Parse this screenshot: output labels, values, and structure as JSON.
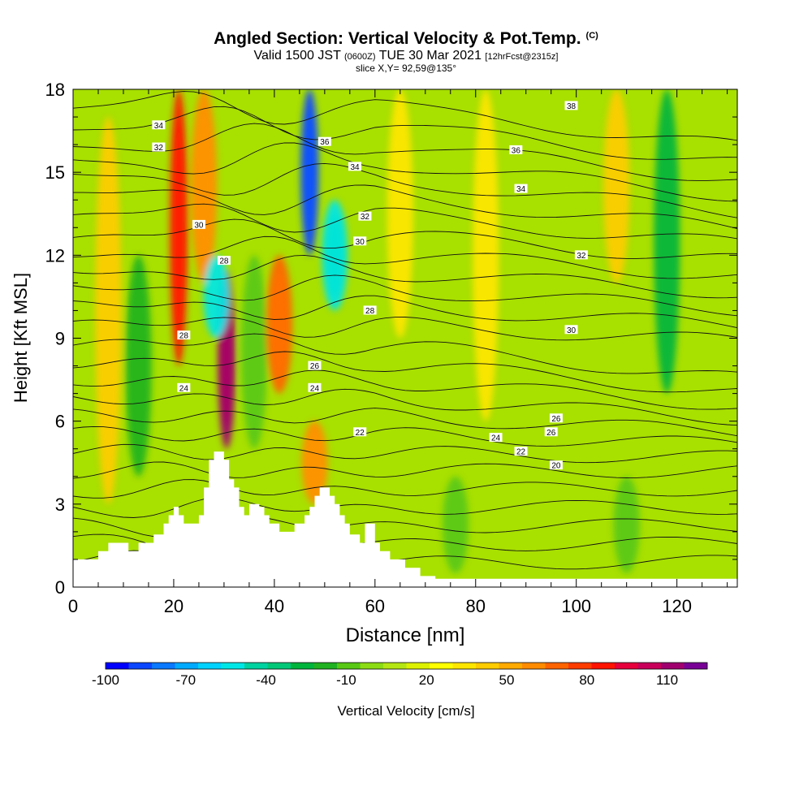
{
  "header": {
    "title": "Angled Section: Vertical Velocity & Pot.Temp.",
    "title_units": "(C)",
    "valid_prefix": "Valid 1500 JST",
    "valid_utc": "(0600Z)",
    "valid_date": "TUE 30 Mar 2021",
    "forecast": "[12hrFcst@2315z]",
    "slice": "slice X,Y= 92,59@135°"
  },
  "chart_data": {
    "type": "heatmap",
    "title": "Angled Section: Vertical Velocity & Pot.Temp.",
    "xlabel": "Distance [nm]",
    "ylabel": "Height [Kft MSL]",
    "xlim": [
      0,
      132
    ],
    "ylim": [
      0,
      18
    ],
    "x_ticks": [
      "0",
      "20",
      "40",
      "60",
      "80",
      "100",
      "120"
    ],
    "y_ticks": [
      "0",
      "3",
      "6",
      "9",
      "12",
      "15",
      "18"
    ],
    "colorbar": {
      "label": "Vertical Velocity [cm/s]",
      "tick_labels": [
        "-100",
        "-70",
        "-40",
        "-10",
        "20",
        "50",
        "80",
        "110"
      ],
      "min": -100,
      "max": 125,
      "colors": [
        "#0000ff",
        "#0a46ff",
        "#0a78ff",
        "#00aaff",
        "#00d2ff",
        "#00e6e6",
        "#00d2a0",
        "#00c878",
        "#00b43c",
        "#20b220",
        "#58c814",
        "#8cdc14",
        "#b4e614",
        "#dcf000",
        "#ffff00",
        "#ffe600",
        "#ffcc00",
        "#ffaa00",
        "#ff8c00",
        "#ff6400",
        "#ff3c00",
        "#ff1400",
        "#e6003c",
        "#c8005a",
        "#a0006e",
        "#780096"
      ]
    },
    "vertical_velocity_features": [
      {
        "x": 21,
        "y_range": [
          8,
          18
        ],
        "value": 90,
        "note": "updraft"
      },
      {
        "x": 26,
        "y_range": [
          11,
          18
        ],
        "value": 60
      },
      {
        "x": 30.5,
        "y_range": [
          5,
          11.5
        ],
        "value": 115,
        "note": "strong updraft"
      },
      {
        "x": 28.5,
        "y_range": [
          9,
          12
        ],
        "value": -50
      },
      {
        "x": 36,
        "y_range": [
          5,
          12
        ],
        "value": -10
      },
      {
        "x": 41,
        "y_range": [
          7,
          12
        ],
        "value": 65
      },
      {
        "x": 47,
        "y_range": [
          12,
          18
        ],
        "value": -90,
        "note": "downdraft"
      },
      {
        "x": 52,
        "y_range": [
          10,
          14
        ],
        "value": -55
      },
      {
        "x": 48,
        "y_range": [
          3,
          6
        ],
        "value": 60
      },
      {
        "x": 7,
        "y_range": [
          3,
          17
        ],
        "value": 45
      },
      {
        "x": 13,
        "y_range": [
          4,
          12
        ],
        "value": -15
      },
      {
        "x": 65,
        "y_range": [
          9,
          18
        ],
        "value": 30
      },
      {
        "x": 82,
        "y_range": [
          6,
          18
        ],
        "value": 35
      },
      {
        "x": 108,
        "y_range": [
          11,
          18
        ],
        "value": 45
      },
      {
        "x": 118,
        "y_range": [
          7,
          18
        ],
        "value": -30
      },
      {
        "x": 76,
        "y_range": [
          0.5,
          4
        ],
        "value": -10
      },
      {
        "x": 110,
        "y_range": [
          0.5,
          4
        ],
        "value": -5
      }
    ],
    "isentropes": [
      {
        "label": "20",
        "label_at": [
          96,
          4.4
        ]
      },
      {
        "label": "22",
        "label_at": [
          57,
          5.6
        ]
      },
      {
        "label": "22",
        "label_at": [
          89,
          4.9
        ]
      },
      {
        "label": "24",
        "label_at": [
          22,
          7.2
        ]
      },
      {
        "label": "24",
        "label_at": [
          48,
          7.2
        ]
      },
      {
        "label": "24",
        "label_at": [
          84,
          5.4
        ]
      },
      {
        "label": "26",
        "label_at": [
          48,
          8.0
        ]
      },
      {
        "label": "26",
        "label_at": [
          95,
          5.6
        ]
      },
      {
        "label": "26",
        "label_at": [
          96,
          6.1
        ]
      },
      {
        "label": "28",
        "label_at": [
          22,
          9.1
        ]
      },
      {
        "label": "28",
        "label_at": [
          59,
          10.0
        ]
      },
      {
        "label": "28",
        "label_at": [
          30,
          11.8
        ]
      },
      {
        "label": "30",
        "label_at": [
          25,
          13.1
        ]
      },
      {
        "label": "30",
        "label_at": [
          57,
          12.5
        ]
      },
      {
        "label": "30",
        "label_at": [
          99,
          9.3
        ]
      },
      {
        "label": "32",
        "label_at": [
          17,
          15.9
        ]
      },
      {
        "label": "32",
        "label_at": [
          58,
          13.4
        ]
      },
      {
        "label": "32",
        "label_at": [
          101,
          12.0
        ]
      },
      {
        "label": "34",
        "label_at": [
          17,
          16.7
        ]
      },
      {
        "label": "34",
        "label_at": [
          56,
          15.2
        ]
      },
      {
        "label": "34",
        "label_at": [
          89,
          14.4
        ]
      },
      {
        "label": "36",
        "label_at": [
          50,
          16.1
        ]
      },
      {
        "label": "36",
        "label_at": [
          88,
          15.8
        ]
      },
      {
        "label": "38",
        "label_at": [
          99,
          17.4
        ]
      }
    ],
    "terrain": [
      [
        0,
        1.0
      ],
      [
        5,
        1.0
      ],
      [
        5,
        1.3
      ],
      [
        7,
        1.3
      ],
      [
        7,
        1.6
      ],
      [
        11,
        1.6
      ],
      [
        11,
        1.3
      ],
      [
        13,
        1.3
      ],
      [
        13,
        1.6
      ],
      [
        16,
        1.6
      ],
      [
        16,
        1.9
      ],
      [
        18,
        1.9
      ],
      [
        18,
        2.3
      ],
      [
        19,
        2.3
      ],
      [
        19,
        2.6
      ],
      [
        20,
        2.6
      ],
      [
        20,
        2.9
      ],
      [
        21,
        2.9
      ],
      [
        21,
        2.6
      ],
      [
        22,
        2.6
      ],
      [
        22,
        2.3
      ],
      [
        25,
        2.3
      ],
      [
        25,
        2.6
      ],
      [
        26,
        2.6
      ],
      [
        26,
        3.6
      ],
      [
        27,
        3.6
      ],
      [
        27,
        4.6
      ],
      [
        28,
        4.6
      ],
      [
        28,
        4.9
      ],
      [
        30,
        4.9
      ],
      [
        30,
        4.6
      ],
      [
        31,
        4.6
      ],
      [
        31,
        3.9
      ],
      [
        32,
        3.9
      ],
      [
        32,
        3.6
      ],
      [
        33,
        3.6
      ],
      [
        33,
        2.9
      ],
      [
        34,
        2.9
      ],
      [
        34,
        2.6
      ],
      [
        35,
        2.6
      ],
      [
        35,
        3.0
      ],
      [
        37,
        3.0
      ],
      [
        37,
        2.9
      ],
      [
        38,
        2.9
      ],
      [
        38,
        2.6
      ],
      [
        39,
        2.6
      ],
      [
        39,
        2.3
      ],
      [
        41,
        2.3
      ],
      [
        41,
        2.0
      ],
      [
        44,
        2.0
      ],
      [
        44,
        2.3
      ],
      [
        46,
        2.3
      ],
      [
        46,
        2.6
      ],
      [
        47,
        2.6
      ],
      [
        47,
        2.9
      ],
      [
        48,
        2.9
      ],
      [
        48,
        3.3
      ],
      [
        49,
        3.3
      ],
      [
        49,
        3.6
      ],
      [
        51,
        3.6
      ],
      [
        51,
        3.3
      ],
      [
        52,
        3.3
      ],
      [
        52,
        3.0
      ],
      [
        53,
        3.0
      ],
      [
        53,
        2.6
      ],
      [
        54,
        2.6
      ],
      [
        54,
        2.3
      ],
      [
        55,
        2.3
      ],
      [
        55,
        1.9
      ],
      [
        57,
        1.9
      ],
      [
        57,
        1.6
      ],
      [
        58,
        1.6
      ],
      [
        58,
        2.3
      ],
      [
        60,
        2.3
      ],
      [
        60,
        1.6
      ],
      [
        61,
        1.6
      ],
      [
        61,
        1.3
      ],
      [
        63,
        1.3
      ],
      [
        63,
        1.0
      ],
      [
        66,
        1.0
      ],
      [
        66,
        0.7
      ],
      [
        69,
        0.7
      ],
      [
        69,
        0.4
      ],
      [
        72,
        0.4
      ],
      [
        72,
        0.3
      ],
      [
        132,
        0.3
      ]
    ]
  }
}
